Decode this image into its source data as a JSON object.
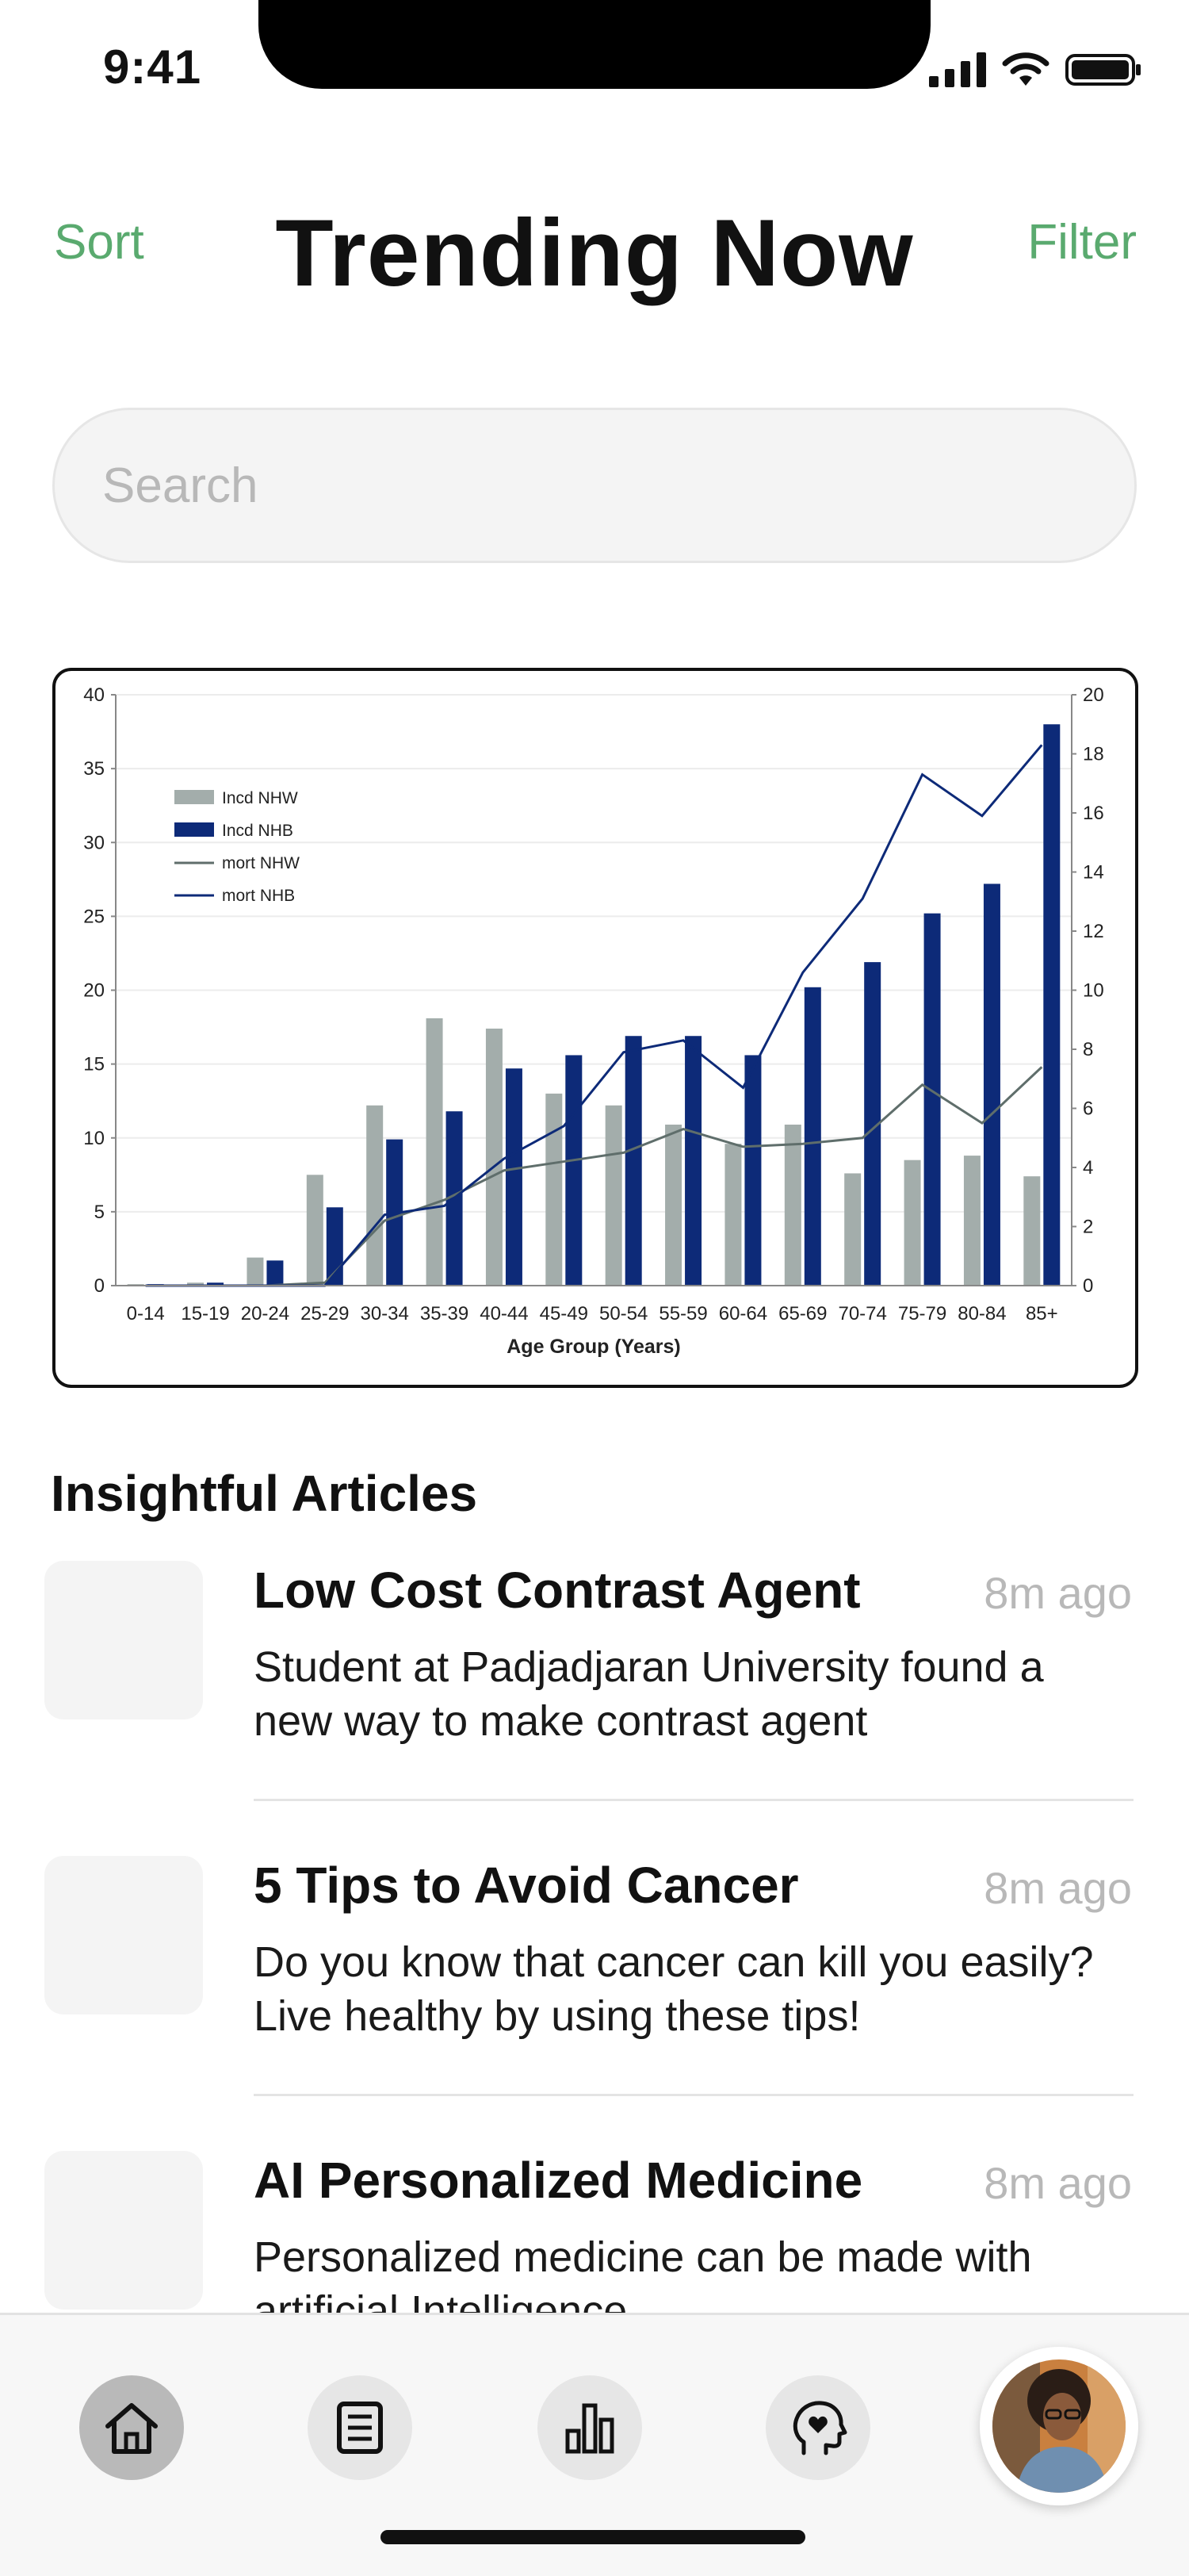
{
  "status_bar": {
    "time": "9:41"
  },
  "header": {
    "sort_label": "Sort",
    "title": "Trending Now",
    "filter_label": "Filter"
  },
  "search": {
    "placeholder": "Search",
    "value": ""
  },
  "chart_data": {
    "type": "bar",
    "categories": [
      "0-14",
      "15-19",
      "20-24",
      "25-29",
      "30-34",
      "35-39",
      "40-44",
      "45-49",
      "50-54",
      "55-59",
      "60-64",
      "65-69",
      "70-74",
      "75-79",
      "80-84",
      "85+"
    ],
    "xlabel": "Age Group (Years)",
    "ylim": [
      0,
      40
    ],
    "y2lim": [
      0,
      20
    ],
    "yticks": [
      0,
      5,
      10,
      15,
      20,
      25,
      30,
      35,
      40
    ],
    "y2ticks": [
      0,
      2,
      4,
      6,
      8,
      10,
      12,
      14,
      16,
      18,
      20
    ],
    "legend_position": "top-left",
    "series": [
      {
        "name": "Incd NHW",
        "kind": "bar",
        "axis": "left",
        "color": "#a3adab",
        "values": [
          0.1,
          0.2,
          1.9,
          7.5,
          12.2,
          18.1,
          17.4,
          13.0,
          12.2,
          10.9,
          9.6,
          10.9,
          7.6,
          8.5,
          8.8,
          7.4
        ]
      },
      {
        "name": "Incd NHB",
        "kind": "bar",
        "axis": "left",
        "color": "#0d2a78",
        "values": [
          0.1,
          0.2,
          1.7,
          5.3,
          9.9,
          11.8,
          14.7,
          15.6,
          16.9,
          16.9,
          15.6,
          20.2,
          21.9,
          25.2,
          27.2,
          38.0
        ]
      },
      {
        "name": "mort NHW",
        "kind": "line",
        "axis": "right",
        "color": "#5f6e6b",
        "values": [
          0.0,
          0.0,
          0.0,
          0.1,
          2.2,
          2.9,
          3.9,
          4.2,
          4.5,
          5.3,
          4.7,
          4.8,
          5.0,
          6.8,
          5.5,
          7.4
        ]
      },
      {
        "name": "mort NHB",
        "kind": "line",
        "axis": "right",
        "color": "#0d2a78",
        "values": [
          0.0,
          0.0,
          0.0,
          0.0,
          2.4,
          2.7,
          4.3,
          5.4,
          7.9,
          8.3,
          6.7,
          10.6,
          13.1,
          17.3,
          15.9,
          18.3
        ]
      }
    ]
  },
  "articles_section": {
    "title": "Insightful Articles",
    "items": [
      {
        "title": "Low Cost Contrast Agent",
        "time": "8m ago",
        "description": "Student at Padjadjaran University found a new way to make contrast agent"
      },
      {
        "title": "5 Tips to Avoid Cancer",
        "time": "8m ago",
        "description": "Do you know that cancer can kill you easily? Live healthy by using these tips!"
      },
      {
        "title": "AI Personalized Medicine",
        "time": "8m ago",
        "description": "Personalized medicine can be made with artificial Intelligence"
      }
    ]
  },
  "bottom_nav": {
    "items": [
      {
        "icon": "home-icon",
        "active": true
      },
      {
        "icon": "article-icon",
        "active": false
      },
      {
        "icon": "bar-chart-icon",
        "active": false
      },
      {
        "icon": "mind-heart-icon",
        "active": false
      }
    ],
    "avatar_icon": "profile-avatar"
  }
}
